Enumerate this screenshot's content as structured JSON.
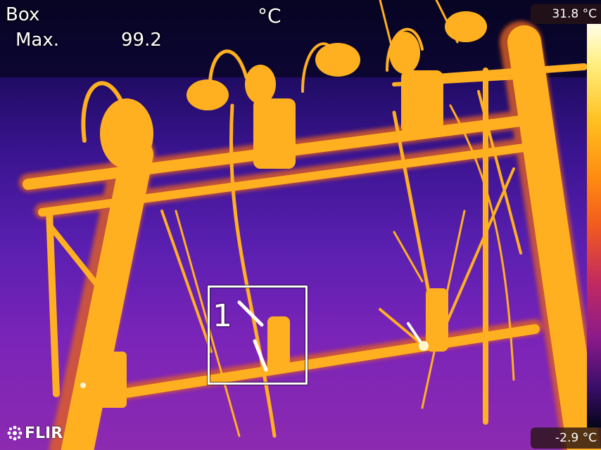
{
  "measurement": {
    "label": "Box",
    "name": "Max.",
    "value": "99.2",
    "unit": "°C",
    "box_number": "1"
  },
  "scale": {
    "max": "31.8 °C",
    "min": "-2.9 °C"
  },
  "brand": "FLIR",
  "palette": {
    "hot": "#ffffff",
    "warm": "#ffc020",
    "mid": "#ff8c10",
    "cool": "#5a1fb0",
    "cold": "#0a0530"
  }
}
